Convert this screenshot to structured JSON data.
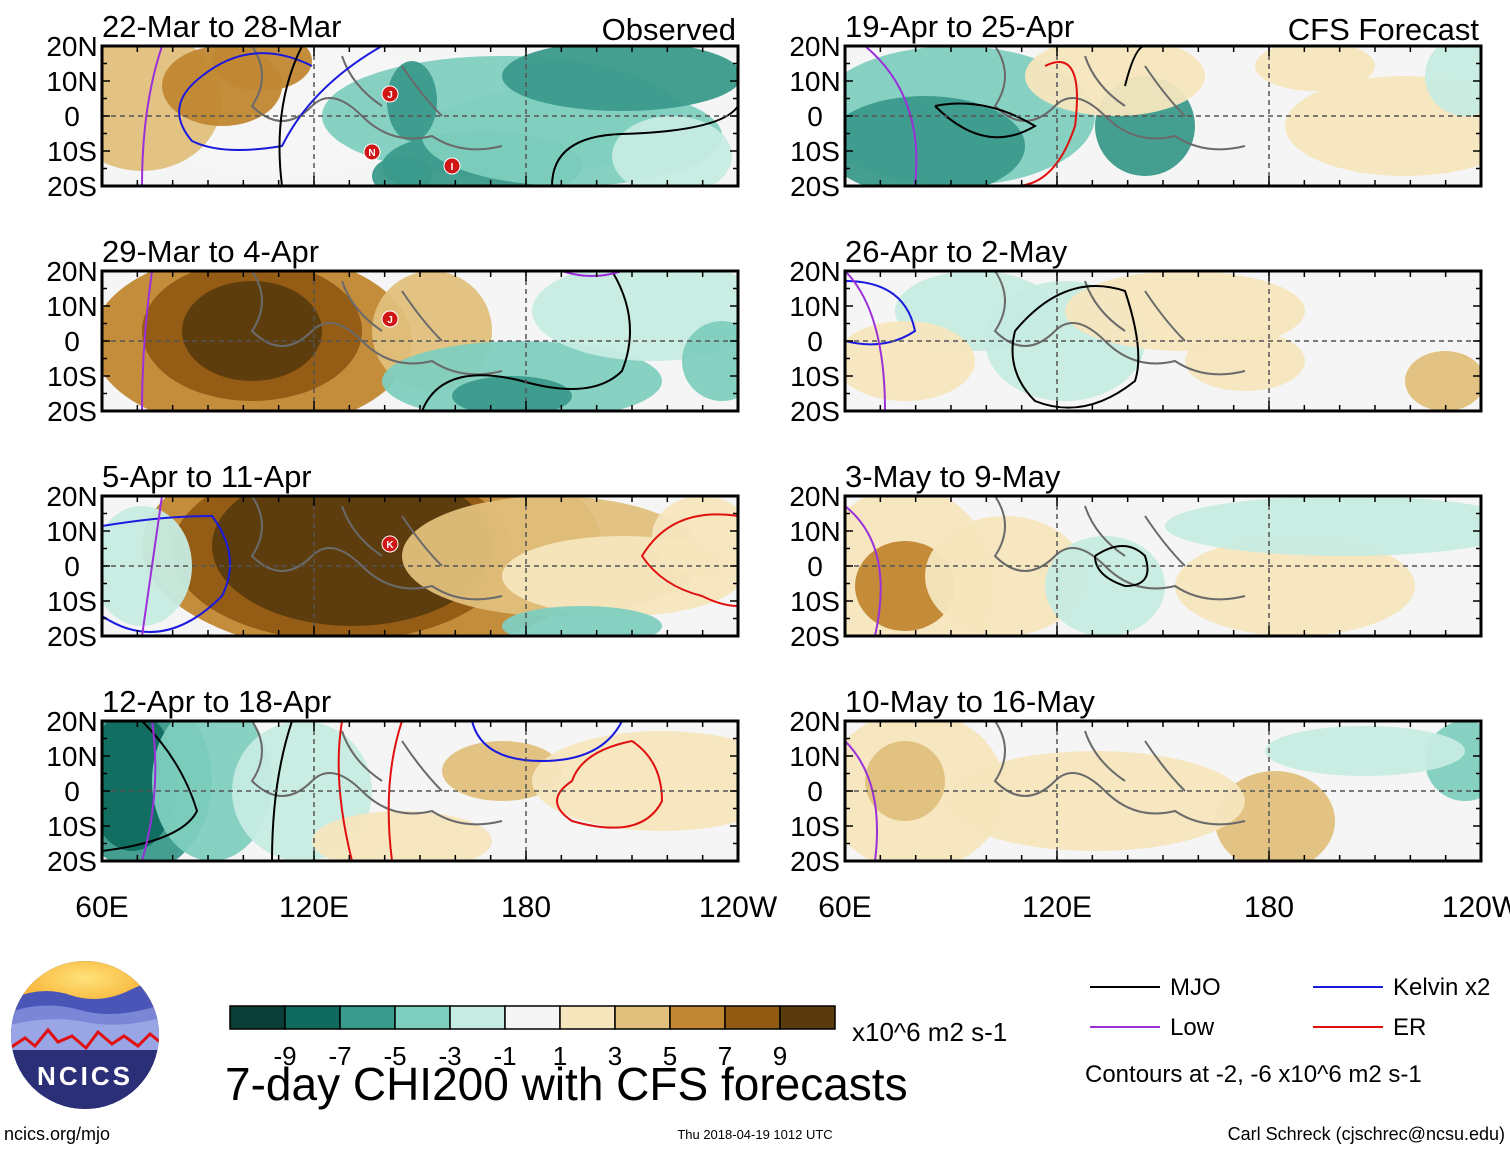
{
  "chart_data": {
    "type": "heatmap",
    "title": "7-day CHI200 with CFS forecasts",
    "variable": "CHI200 (200-hPa velocity potential anomaly)",
    "units": "x10^6 m2 s-1",
    "x_axis": {
      "ticks": [
        "60E",
        "120E",
        "180",
        "120W"
      ],
      "range": [
        "60E",
        "120W"
      ]
    },
    "y_axis": {
      "ticks": [
        "20N",
        "10N",
        "0",
        "10S",
        "20S"
      ],
      "range": [
        "20S",
        "20N"
      ]
    },
    "colorbar": {
      "tick_labels": [
        "-9",
        "-7",
        "-5",
        "-3",
        "-1",
        "1",
        "3",
        "5",
        "7",
        "9"
      ],
      "colors": [
        "#0a3d35",
        "#0f6b5e",
        "#3a9a8b",
        "#7fcfbf",
        "#c6ebe2",
        "#f5f5f5",
        "#f6e6be",
        "#e0c07c",
        "#c18732",
        "#915a12",
        "#5a3b0d"
      ]
    },
    "columns": [
      {
        "label": "Observed"
      },
      {
        "label": "CFS Forecast"
      }
    ],
    "panels": [
      {
        "title": "22-Mar to 28-Mar",
        "column": "Observed",
        "storms": [
          "J",
          "N",
          "I"
        ]
      },
      {
        "title": "29-Mar to 4-Apr",
        "column": "Observed",
        "storms": [
          "J"
        ]
      },
      {
        "title": "5-Apr to 11-Apr",
        "column": "Observed",
        "storms": [
          "K"
        ]
      },
      {
        "title": "12-Apr to 18-Apr",
        "column": "Observed",
        "storms": []
      },
      {
        "title": "19-Apr to 25-Apr",
        "column": "CFS Forecast",
        "storms": []
      },
      {
        "title": "26-Apr to 2-May",
        "column": "CFS Forecast",
        "storms": []
      },
      {
        "title": "3-May to 9-May",
        "column": "CFS Forecast",
        "storms": []
      },
      {
        "title": "10-May to 16-May",
        "column": "CFS Forecast",
        "storms": []
      }
    ],
    "contour_legend": [
      {
        "name": "MJO",
        "color": "#000000"
      },
      {
        "name": "Low",
        "color": "#9b30d9"
      },
      {
        "name": "Kelvin x2",
        "color": "#1a1adf"
      },
      {
        "name": "ER",
        "color": "#e01010"
      }
    ],
    "contour_note": "Contours at -2, -6 x10^6 m2 s-1"
  },
  "branding": {
    "logo_text": "NCICS",
    "website": "ncics.org/mjo",
    "timestamp": "Thu 2018-04-19 1012 UTC",
    "author": "Carl Schreck (cjschrec@ncsu.edu)"
  }
}
